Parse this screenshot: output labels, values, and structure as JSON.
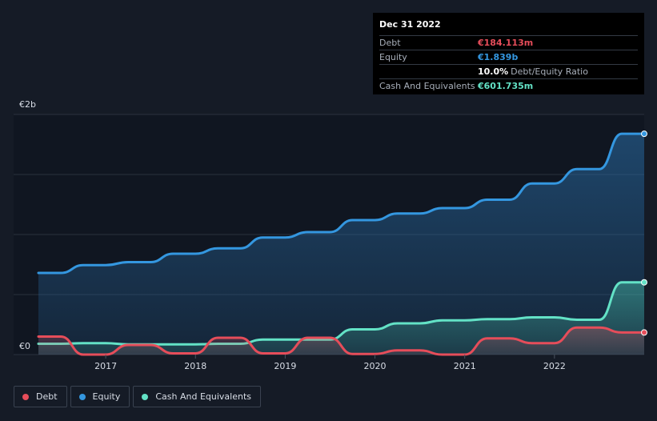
{
  "tooltip": {
    "date": "Dec 31 2022",
    "rows": [
      {
        "label": "Debt",
        "value": "€184.113m",
        "color": "#e64d5a"
      },
      {
        "label": "Equity",
        "value": "€1.839b",
        "color": "#3497e0"
      },
      {
        "label": "",
        "value": "10.0%",
        "sub": "Debt/Equity Ratio",
        "color": "#ffffff"
      },
      {
        "label": "Cash And Equivalents",
        "value": "€601.735m",
        "color": "#63e2c6"
      }
    ]
  },
  "legend": [
    {
      "label": "Debt",
      "color": "#e64d5a"
    },
    {
      "label": "Equity",
      "color": "#3497e0"
    },
    {
      "label": "Cash And Equivalents",
      "color": "#63e2c6"
    }
  ],
  "chart_data": {
    "type": "area",
    "ylim": [
      0,
      2000
    ],
    "y_unit": "€m",
    "y_tick_labels": [
      {
        "value": 0,
        "label": "€0"
      },
      {
        "value": 2000,
        "label": "€2b"
      }
    ],
    "xlim": [
      2016.25,
      2023.0
    ],
    "x_tick_labels": [
      "2017",
      "2018",
      "2019",
      "2020",
      "2021",
      "2022"
    ],
    "x_ticks": [
      2017,
      2018,
      2019,
      2020,
      2021,
      2022
    ],
    "grid": true,
    "legend_position": "bottom-left",
    "series": [
      {
        "name": "Equity",
        "color": "#3497e0",
        "points": [
          [
            2016.25,
            680
          ],
          [
            2016.5,
            680
          ],
          [
            2016.75,
            745
          ],
          [
            2017.0,
            745
          ],
          [
            2017.25,
            770
          ],
          [
            2017.5,
            770
          ],
          [
            2017.75,
            840
          ],
          [
            2018.0,
            840
          ],
          [
            2018.25,
            885
          ],
          [
            2018.5,
            885
          ],
          [
            2018.75,
            975
          ],
          [
            2019.0,
            975
          ],
          [
            2019.25,
            1020
          ],
          [
            2019.5,
            1020
          ],
          [
            2019.75,
            1120
          ],
          [
            2020.0,
            1120
          ],
          [
            2020.25,
            1175
          ],
          [
            2020.5,
            1175
          ],
          [
            2020.75,
            1220
          ],
          [
            2021.0,
            1220
          ],
          [
            2021.25,
            1290
          ],
          [
            2021.5,
            1290
          ],
          [
            2021.75,
            1425
          ],
          [
            2022.0,
            1425
          ],
          [
            2022.25,
            1545
          ],
          [
            2022.5,
            1545
          ],
          [
            2022.75,
            1839
          ],
          [
            2023.0,
            1839
          ]
        ]
      },
      {
        "name": "Cash And Equivalents",
        "color": "#63e2c6",
        "points": [
          [
            2016.25,
            90
          ],
          [
            2016.5,
            90
          ],
          [
            2016.75,
            95
          ],
          [
            2017.0,
            95
          ],
          [
            2017.25,
            85
          ],
          [
            2017.5,
            85
          ],
          [
            2017.75,
            85
          ],
          [
            2018.0,
            85
          ],
          [
            2018.25,
            90
          ],
          [
            2018.5,
            90
          ],
          [
            2018.75,
            125
          ],
          [
            2019.0,
            125
          ],
          [
            2019.25,
            125
          ],
          [
            2019.5,
            125
          ],
          [
            2019.75,
            210
          ],
          [
            2020.0,
            210
          ],
          [
            2020.25,
            260
          ],
          [
            2020.5,
            260
          ],
          [
            2020.75,
            285
          ],
          [
            2021.0,
            285
          ],
          [
            2021.25,
            295
          ],
          [
            2021.5,
            295
          ],
          [
            2021.75,
            310
          ],
          [
            2022.0,
            310
          ],
          [
            2022.25,
            290
          ],
          [
            2022.5,
            290
          ],
          [
            2022.75,
            602
          ],
          [
            2023.0,
            602
          ]
        ]
      },
      {
        "name": "Debt",
        "color": "#e64d5a",
        "points": [
          [
            2016.25,
            150
          ],
          [
            2016.5,
            150
          ],
          [
            2016.75,
            0
          ],
          [
            2017.0,
            0
          ],
          [
            2017.25,
            80
          ],
          [
            2017.5,
            80
          ],
          [
            2017.75,
            10
          ],
          [
            2018.0,
            10
          ],
          [
            2018.25,
            140
          ],
          [
            2018.5,
            140
          ],
          [
            2018.75,
            10
          ],
          [
            2019.0,
            10
          ],
          [
            2019.25,
            140
          ],
          [
            2019.5,
            140
          ],
          [
            2019.75,
            5
          ],
          [
            2020.0,
            5
          ],
          [
            2020.25,
            35
          ],
          [
            2020.5,
            35
          ],
          [
            2020.75,
            0
          ],
          [
            2021.0,
            0
          ],
          [
            2021.25,
            135
          ],
          [
            2021.5,
            135
          ],
          [
            2021.75,
            95
          ],
          [
            2022.0,
            95
          ],
          [
            2022.25,
            225
          ],
          [
            2022.5,
            225
          ],
          [
            2022.75,
            184
          ],
          [
            2023.0,
            184
          ]
        ]
      }
    ]
  }
}
